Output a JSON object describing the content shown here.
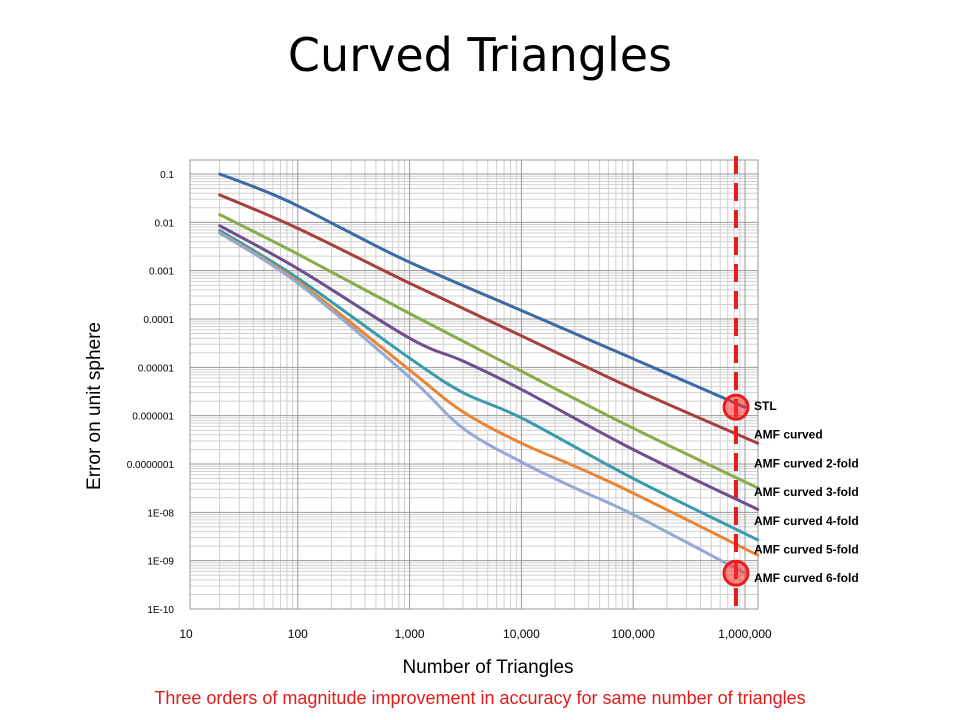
{
  "slide": {
    "title": "Curved Triangles",
    "footnote": "Three orders of magnitude improvement in accuracy for same number of triangles"
  },
  "chart_data": {
    "type": "line",
    "xlabel": "Number of Triangles",
    "ylabel": "Error on unit sphere",
    "x_scale": "log",
    "y_scale": "log",
    "xlim": [
      10,
      1000000
    ],
    "ylim": [
      1e-10,
      0.1
    ],
    "x_ticks": [
      "10",
      "100",
      "1,000",
      "10,000",
      "100,000",
      "1,000,000"
    ],
    "y_ticks": [
      "1E-10",
      "1E-09",
      "1E-08",
      "0.0000001",
      "0.000001",
      "0.00001",
      "0.0001",
      "0.001",
      "0.01",
      "0.1"
    ],
    "grid": true,
    "legend": "right-inline",
    "marker_line_x": 1000000,
    "marker_line_color": "#e41e1e",
    "series": [
      {
        "name": "STL",
        "color": "#3d6aa7",
        "points": [
          [
            20,
            0.1
          ],
          [
            50,
            0.045
          ],
          [
            100,
            0.022
          ],
          [
            300,
            0.006
          ],
          [
            1000,
            0.0015
          ],
          [
            10000,
            0.00015
          ],
          [
            100000,
            1.5e-05
          ],
          [
            1000000,
            1.5e-06
          ]
        ]
      },
      {
        "name": "AMF curved",
        "color": "#a73f3c",
        "points": [
          [
            20,
            0.037
          ],
          [
            100,
            0.0075
          ],
          [
            1000,
            0.00055
          ],
          [
            10000,
            4.5e-05
          ],
          [
            100000,
            3.6e-06
          ],
          [
            1300000,
            2.7e-07
          ]
        ]
      },
      {
        "name": "AMF curved 2-fold",
        "color": "#8aab4b",
        "points": [
          [
            20,
            0.0145
          ],
          [
            100,
            0.0022
          ],
          [
            1000,
            0.00013
          ],
          [
            10000,
            8.3e-06
          ],
          [
            100000,
            5.5e-07
          ],
          [
            1300000,
            3.2e-08
          ]
        ]
      },
      {
        "name": "AMF curved 3-fold",
        "color": "#6c4f8f",
        "points": [
          [
            20,
            0.0085
          ],
          [
            100,
            0.0011
          ],
          [
            1000,
            4e-05
          ],
          [
            3000,
            1.35e-05
          ],
          [
            10000,
            3.5e-06
          ],
          [
            100000,
            2e-07
          ],
          [
            1300000,
            1.15e-08
          ]
        ]
      },
      {
        "name": "AMF curved 4-fold",
        "color": "#3a9bae",
        "points": [
          [
            20,
            0.0068
          ],
          [
            100,
            0.0007
          ],
          [
            1000,
            1.55e-05
          ],
          [
            3000,
            3e-06
          ],
          [
            10000,
            9e-07
          ],
          [
            100000,
            5e-08
          ],
          [
            1300000,
            2.7e-09
          ]
        ]
      },
      {
        "name": "AMF curved 5-fold",
        "color": "#e98535",
        "points": [
          [
            20,
            0.0062
          ],
          [
            100,
            0.0006
          ],
          [
            1000,
            8.8e-06
          ],
          [
            3000,
            1.2e-06
          ],
          [
            10000,
            2.7e-07
          ],
          [
            30000,
            9e-08
          ],
          [
            100000,
            2.5e-08
          ],
          [
            1300000,
            1.3e-09
          ]
        ]
      },
      {
        "name": "AMF curved 6-fold",
        "color": "#93aad4",
        "points": [
          [
            20,
            0.006
          ],
          [
            100,
            0.00055
          ],
          [
            1000,
            6.2e-06
          ],
          [
            3000,
            5.5e-07
          ],
          [
            10000,
            1.1e-07
          ],
          [
            30000,
            3.2e-08
          ],
          [
            100000,
            9e-09
          ],
          [
            1000000,
            5.5e-10
          ]
        ]
      }
    ],
    "highlighted_points": [
      [
        1000000,
        1.5e-06
      ],
      [
        1000000,
        5.5e-10
      ]
    ]
  }
}
